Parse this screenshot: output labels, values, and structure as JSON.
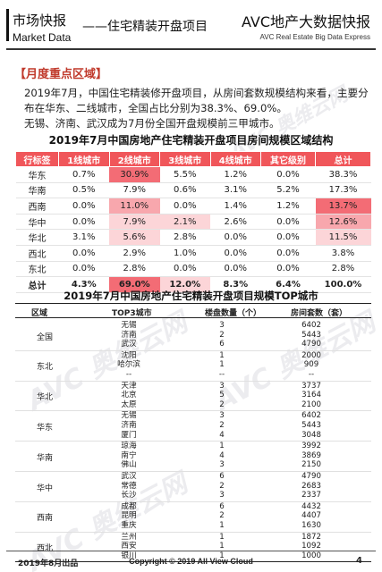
{
  "header": {
    "cn_title": "市场快报",
    "en_title": "Market Data",
    "subtitle": "——住宅精装开盘项目",
    "brand": "AVC地产大数据快报",
    "brand_en": "AVC  Real Estate Big Data Express"
  },
  "section": {
    "heading": "【月度重点区域】",
    "para1": "2019年7月，中国住宅精装修开盘项目，从房间套数规模结构来看，主要分布在华东、二线城市，全国占比分别为38.3%、69.0%。",
    "para2": "无锡、济南、武汉成为7月份全国开盘规模前三甲城市。"
  },
  "table1": {
    "title": "2019年7月中国房地产住宅精装开盘项目房间规模区域结构",
    "headers": [
      "行标签",
      "1线城市",
      "2线城市",
      "3线城市",
      "4线城市",
      "其它级别",
      "总计"
    ],
    "rows": [
      [
        "华东",
        "0.7%",
        "30.9%",
        "5.5%",
        "1.2%",
        "0.0%",
        "38.3%"
      ],
      [
        "华南",
        "0.5%",
        "7.9%",
        "0.6%",
        "3.1%",
        "5.2%",
        "17.3%"
      ],
      [
        "西南",
        "0.0%",
        "11.0%",
        "0.0%",
        "1.4%",
        "1.2%",
        "13.7%"
      ],
      [
        "华中",
        "0.0%",
        "7.9%",
        "2.1%",
        "2.6%",
        "0.0%",
        "12.6%"
      ],
      [
        "华北",
        "3.1%",
        "5.6%",
        "2.8%",
        "0.0%",
        "0.0%",
        "11.5%"
      ],
      [
        "西北",
        "0.0%",
        "2.9%",
        "1.0%",
        "0.0%",
        "0.0%",
        "3.8%"
      ],
      [
        "东北",
        "0.0%",
        "2.8%",
        "0.0%",
        "0.0%",
        "0.0%",
        "2.8%"
      ]
    ],
    "total": [
      "总计",
      "4.3%",
      "69.0%",
      "12.0%",
      "8.3%",
      "6.4%",
      "100.0%"
    ]
  },
  "table2": {
    "title": "2019年7月中国房地产住宅精装开盘项目规模TOP城市",
    "headers": [
      "区域",
      "TOP3城市",
      "楼盘数量（个）",
      "房间套数（套）"
    ],
    "groups": [
      {
        "region": "全国",
        "rows": [
          [
            "无锡",
            "3",
            "6402"
          ],
          [
            "济南",
            "2",
            "5443"
          ],
          [
            "武汉",
            "6",
            "4790"
          ]
        ]
      },
      {
        "region": "东北",
        "rows": [
          [
            "沈阳",
            "1",
            "2000"
          ],
          [
            "哈尔滨",
            "1",
            "909"
          ],
          [
            "--",
            "--",
            "--"
          ]
        ]
      },
      {
        "region": "华北",
        "rows": [
          [
            "天津",
            "3",
            "3737"
          ],
          [
            "北京",
            "5",
            "3164"
          ],
          [
            "太原",
            "2",
            "2100"
          ]
        ]
      },
      {
        "region": "华东",
        "rows": [
          [
            "无锡",
            "3",
            "6402"
          ],
          [
            "济南",
            "2",
            "5443"
          ],
          [
            "厦门",
            "4",
            "3048"
          ]
        ]
      },
      {
        "region": "华南",
        "rows": [
          [
            "琼海",
            "1",
            "3992"
          ],
          [
            "南宁",
            "4",
            "3869"
          ],
          [
            "佛山",
            "3",
            "2150"
          ]
        ]
      },
      {
        "region": "华中",
        "rows": [
          [
            "武汉",
            "6",
            "4790"
          ],
          [
            "常德",
            "2",
            "2683"
          ],
          [
            "长沙",
            "3",
            "2337"
          ]
        ]
      },
      {
        "region": "西南",
        "rows": [
          [
            "成都",
            "6",
            "4432"
          ],
          [
            "昆明",
            "2",
            "4407"
          ],
          [
            "重庆",
            "1",
            "1630"
          ]
        ]
      },
      {
        "region": "西北",
        "rows": [
          [
            "兰州",
            "1",
            "1872"
          ],
          [
            "西安",
            "1",
            "1092"
          ],
          [
            "银川",
            "1",
            "1000"
          ]
        ]
      }
    ]
  },
  "watermark": "AVC 奥维云网",
  "footer": {
    "left": "2019年8月出品",
    "center": "Copyright © 2019  All View Cloud",
    "page": "4"
  },
  "colors": {
    "header_red": "#f0565a",
    "heading_red": "#c0392b",
    "heat_strong": "#f36c75",
    "heat_mid": "#f8a7ad",
    "heat_light": "#fcd5d8"
  }
}
